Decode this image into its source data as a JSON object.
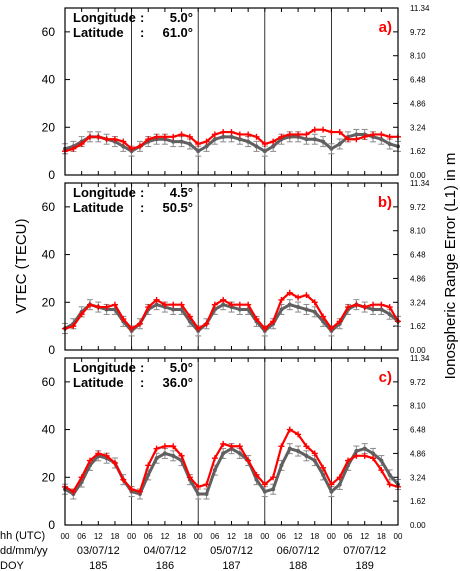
{
  "chart_data": {
    "type": "line",
    "ylabel_left": "VTEC (TECU)",
    "ylabel_right": "Ionospheric Range Error (L1) in m",
    "left_axis": {
      "min": 0,
      "max": 70,
      "ticks": [
        0,
        20,
        40,
        60
      ]
    },
    "right_ticks": [
      "0.00",
      "1.62",
      "3.24",
      "4.86",
      "6.48",
      "8.10",
      "9.72",
      "11.34"
    ],
    "x_range_hours": [
      0,
      120
    ],
    "day_separators_hours": [
      24,
      48,
      72,
      96
    ],
    "x_hour_labels": [
      "00",
      "06",
      "12",
      "18",
      "00",
      "06",
      "12",
      "18",
      "00",
      "06",
      "12",
      "18",
      "00",
      "06",
      "12",
      "18",
      "00",
      "06",
      "12",
      "18",
      "00"
    ],
    "x_rows": {
      "hh_label": "hh (UTC)",
      "date_label": "dd/mm/yy",
      "doy_label": "DOY",
      "dates": [
        "03/07/12",
        "04/07/12",
        "05/07/12",
        "06/07/12",
        "07/07/12"
      ],
      "doys": [
        "185",
        "186",
        "187",
        "188",
        "189"
      ]
    },
    "colors": {
      "observed": "#ff0000",
      "model": "#606060"
    },
    "panels": [
      {
        "letter": "a)",
        "longitude_label": "Longitude",
        "latitude_label": "Latitude",
        "colon": ":",
        "longitude": "5.0°",
        "latitude": "61.0°",
        "observed_x": [
          0,
          3,
          6,
          9,
          12,
          15,
          18,
          21,
          24,
          27,
          30,
          33,
          36,
          39,
          42,
          45,
          48,
          51,
          54,
          57,
          60,
          63,
          66,
          69,
          72,
          75,
          78,
          81,
          84,
          87,
          90,
          93,
          96,
          99,
          102,
          105,
          108,
          111,
          114,
          117,
          120
        ],
        "observed": [
          10,
          11,
          13,
          16,
          16,
          15,
          15,
          14,
          11,
          12,
          15,
          16,
          16,
          16,
          17,
          16,
          13,
          14,
          17,
          18,
          18,
          17,
          17,
          16,
          13,
          14,
          16,
          17,
          17,
          17,
          19,
          19,
          18,
          18,
          15,
          15,
          16,
          17,
          17,
          16,
          16
        ],
        "model_x": [
          0,
          3,
          6,
          9,
          12,
          15,
          18,
          21,
          24,
          27,
          30,
          33,
          36,
          39,
          42,
          45,
          48,
          51,
          54,
          57,
          60,
          63,
          66,
          69,
          72,
          75,
          78,
          81,
          84,
          87,
          90,
          93,
          96,
          99,
          102,
          105,
          108,
          111,
          114,
          117,
          120
        ],
        "model": [
          11,
          12,
          14,
          16,
          16,
          15,
          14,
          12,
          10,
          12,
          14,
          15,
          15,
          14,
          14,
          13,
          10,
          12,
          15,
          16,
          16,
          15,
          14,
          12,
          10,
          12,
          15,
          16,
          16,
          15,
          15,
          14,
          11,
          13,
          16,
          17,
          17,
          16,
          15,
          13,
          12
        ]
      },
      {
        "letter": "b)",
        "longitude_label": "Longitude",
        "latitude_label": "Latitude",
        "colon": ":",
        "longitude": "4.5°",
        "latitude": "50.5°",
        "observed_x": [
          0,
          3,
          6,
          9,
          12,
          15,
          18,
          21,
          24,
          27,
          30,
          33,
          36,
          39,
          42,
          45,
          48,
          51,
          54,
          57,
          60,
          63,
          66,
          69,
          72,
          75,
          78,
          81,
          84,
          87,
          90,
          93,
          96,
          99,
          102,
          105,
          108,
          111,
          114,
          117,
          120
        ],
        "observed": [
          9,
          10,
          15,
          19,
          18,
          18,
          19,
          13,
          9,
          11,
          18,
          21,
          19,
          19,
          19,
          14,
          9,
          11,
          19,
          21,
          19,
          19,
          19,
          13,
          9,
          12,
          21,
          24,
          22,
          23,
          20,
          14,
          9,
          12,
          18,
          19,
          18,
          19,
          19,
          18,
          12
        ],
        "model_x": [
          0,
          3,
          6,
          9,
          12,
          15,
          18,
          21,
          24,
          27,
          30,
          33,
          36,
          39,
          42,
          45,
          48,
          51,
          54,
          57,
          60,
          63,
          66,
          69,
          72,
          75,
          78,
          81,
          84,
          87,
          90,
          93,
          96,
          99,
          102,
          105,
          108,
          111,
          114,
          117,
          120
        ],
        "model": [
          9,
          11,
          16,
          19,
          18,
          17,
          17,
          12,
          8,
          11,
          17,
          19,
          18,
          17,
          17,
          12,
          8,
          11,
          17,
          19,
          18,
          17,
          17,
          12,
          8,
          11,
          17,
          19,
          18,
          17,
          16,
          12,
          8,
          11,
          17,
          19,
          18,
          17,
          17,
          15,
          12
        ]
      },
      {
        "letter": "c)",
        "longitude_label": "Longitude",
        "latitude_label": "Latitude",
        "colon": ":",
        "longitude": "5.0°",
        "latitude": "36.0°",
        "observed_x": [
          0,
          3,
          6,
          9,
          12,
          15,
          18,
          21,
          24,
          27,
          30,
          33,
          36,
          39,
          42,
          45,
          48,
          51,
          54,
          57,
          60,
          63,
          66,
          69,
          72,
          75,
          78,
          81,
          84,
          87,
          90,
          93,
          96,
          99,
          102,
          105,
          108,
          111,
          114,
          117,
          120
        ],
        "observed": [
          16,
          14,
          20,
          27,
          30,
          29,
          26,
          19,
          15,
          14,
          25,
          32,
          33,
          33,
          29,
          20,
          16,
          17,
          28,
          34,
          33,
          33,
          27,
          21,
          17,
          20,
          33,
          40,
          38,
          33,
          30,
          24,
          17,
          20,
          27,
          29,
          29,
          28,
          23,
          17,
          16
        ],
        "model_x": [
          0,
          3,
          6,
          9,
          12,
          15,
          18,
          21,
          24,
          27,
          30,
          33,
          36,
          39,
          42,
          45,
          48,
          51,
          54,
          57,
          60,
          63,
          66,
          69,
          72,
          75,
          78,
          81,
          84,
          87,
          90,
          93,
          96,
          99,
          102,
          105,
          108,
          111,
          114,
          117,
          120
        ],
        "model": [
          15,
          13,
          18,
          25,
          29,
          28,
          26,
          19,
          14,
          13,
          21,
          28,
          30,
          29,
          27,
          19,
          13,
          13,
          23,
          30,
          32,
          30,
          27,
          19,
          14,
          15,
          25,
          32,
          31,
          29,
          27,
          21,
          14,
          17,
          25,
          31,
          32,
          30,
          27,
          21,
          17
        ]
      }
    ]
  }
}
